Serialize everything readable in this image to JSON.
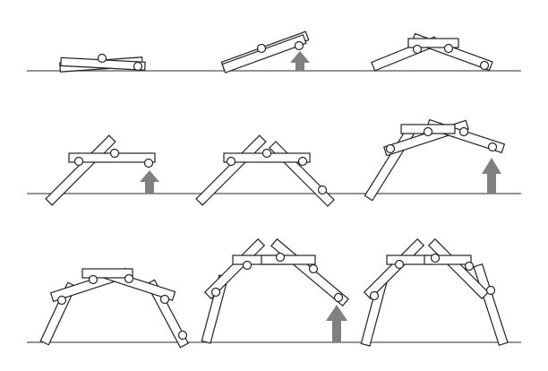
{
  "figure": {
    "description_label": "",
    "colors": {
      "background": "#ffffff",
      "stroke": "#222222",
      "ground": "#555555",
      "arrow": "#808080"
    },
    "panel_count": 9,
    "panels": [
      {
        "step": 1,
        "bar_count": 2,
        "pins": 2,
        "push_arrow": false
      },
      {
        "step": 2,
        "bar_count": 2,
        "pins": 2,
        "push_arrow": true
      },
      {
        "step": 3,
        "bar_count": 3,
        "pins": 2,
        "push_arrow": false
      },
      {
        "step": 4,
        "bar_count": 3,
        "pins": 3,
        "push_arrow": true
      },
      {
        "step": 5,
        "bar_count": 4,
        "pins": 3,
        "push_arrow": false
      },
      {
        "step": 6,
        "bar_count": 5,
        "pins": 4,
        "push_arrow": true
      },
      {
        "step": 7,
        "bar_count": 6,
        "pins": 4,
        "push_arrow": false
      },
      {
        "step": 8,
        "bar_count": 6,
        "pins": 5,
        "push_arrow": true
      },
      {
        "step": 9,
        "bar_count": 7,
        "pins": 5,
        "push_arrow": false
      }
    ]
  }
}
